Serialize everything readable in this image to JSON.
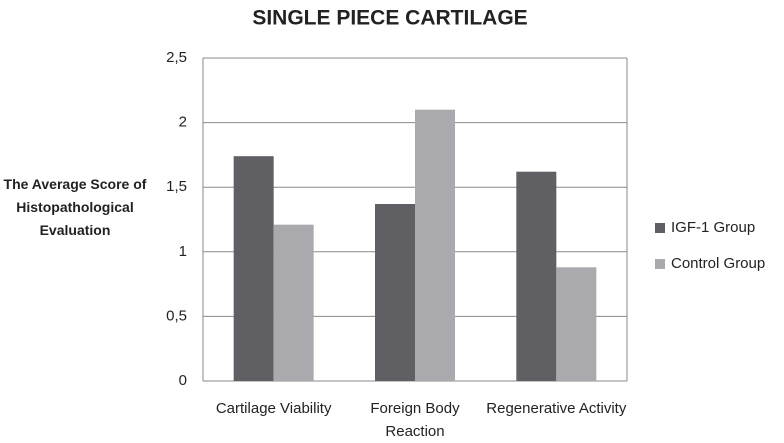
{
  "chart_data": {
    "type": "bar",
    "title": "SINGLE PIECE CARTILAGE",
    "y_label": "The Average Score of Histopathological Evaluation",
    "categories": [
      "Cartilage Viability",
      "Foreign Body Reaction",
      "Regenerative Activity"
    ],
    "series": [
      {
        "name": "IGF-1 Group",
        "color": "#5f5f64",
        "values": [
          1.74,
          1.37,
          1.62
        ]
      },
      {
        "name": "Control Group",
        "color": "#a9a9ae",
        "values": [
          1.21,
          2.1,
          0.88
        ]
      }
    ],
    "ylim": [
      0,
      2.5
    ],
    "yticks": [
      0,
      {
        "value": 0.5,
        "label": "0,5"
      },
      1,
      {
        "value": 1.5,
        "label": "1,5"
      },
      2,
      {
        "value": 2.5,
        "label": "2,5"
      }
    ],
    "grid": true,
    "legend": "right"
  }
}
